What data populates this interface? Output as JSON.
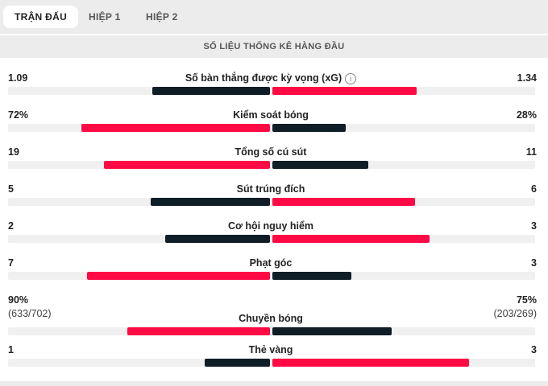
{
  "tabs": [
    {
      "label": "TRẬN ĐẤU",
      "active": true
    },
    {
      "label": "HIỆP 1",
      "active": false
    },
    {
      "label": "HIỆP 2",
      "active": false
    }
  ],
  "section_title": "SỐ LIỆU THỐNG KÊ HÀNG ĐẦU",
  "colors": {
    "winner": "#ff0a45",
    "loser": "#0f1d27",
    "track": "#f0f0f0"
  },
  "stats": [
    {
      "label": "Số bàn thắng được kỳ vọng (xG)",
      "left": "1.09",
      "right": "1.34",
      "left_value": 1.09,
      "right_value": 1.34,
      "info_icon": true
    },
    {
      "label": "Kiểm soát bóng",
      "left": "72%",
      "right": "28%",
      "left_value": 72,
      "right_value": 28
    },
    {
      "label": "Tổng số cú sút",
      "left": "19",
      "right": "11",
      "left_value": 19,
      "right_value": 11
    },
    {
      "label": "Sút trúng đích",
      "left": "5",
      "right": "6",
      "left_value": 5,
      "right_value": 6
    },
    {
      "label": "Cơ hội nguy hiểm",
      "left": "2",
      "right": "3",
      "left_value": 2,
      "right_value": 3
    },
    {
      "label": "Phạt góc",
      "left": "7",
      "right": "3",
      "left_value": 7,
      "right_value": 3
    },
    {
      "label": "Chuyền bóng",
      "left": "90%",
      "right": "75%",
      "left_sub": "(633/702)",
      "right_sub": "(203/269)",
      "left_value": 90,
      "right_value": 75
    },
    {
      "label": "Thẻ vàng",
      "left": "1",
      "right": "3",
      "left_value": 1,
      "right_value": 3
    }
  ]
}
